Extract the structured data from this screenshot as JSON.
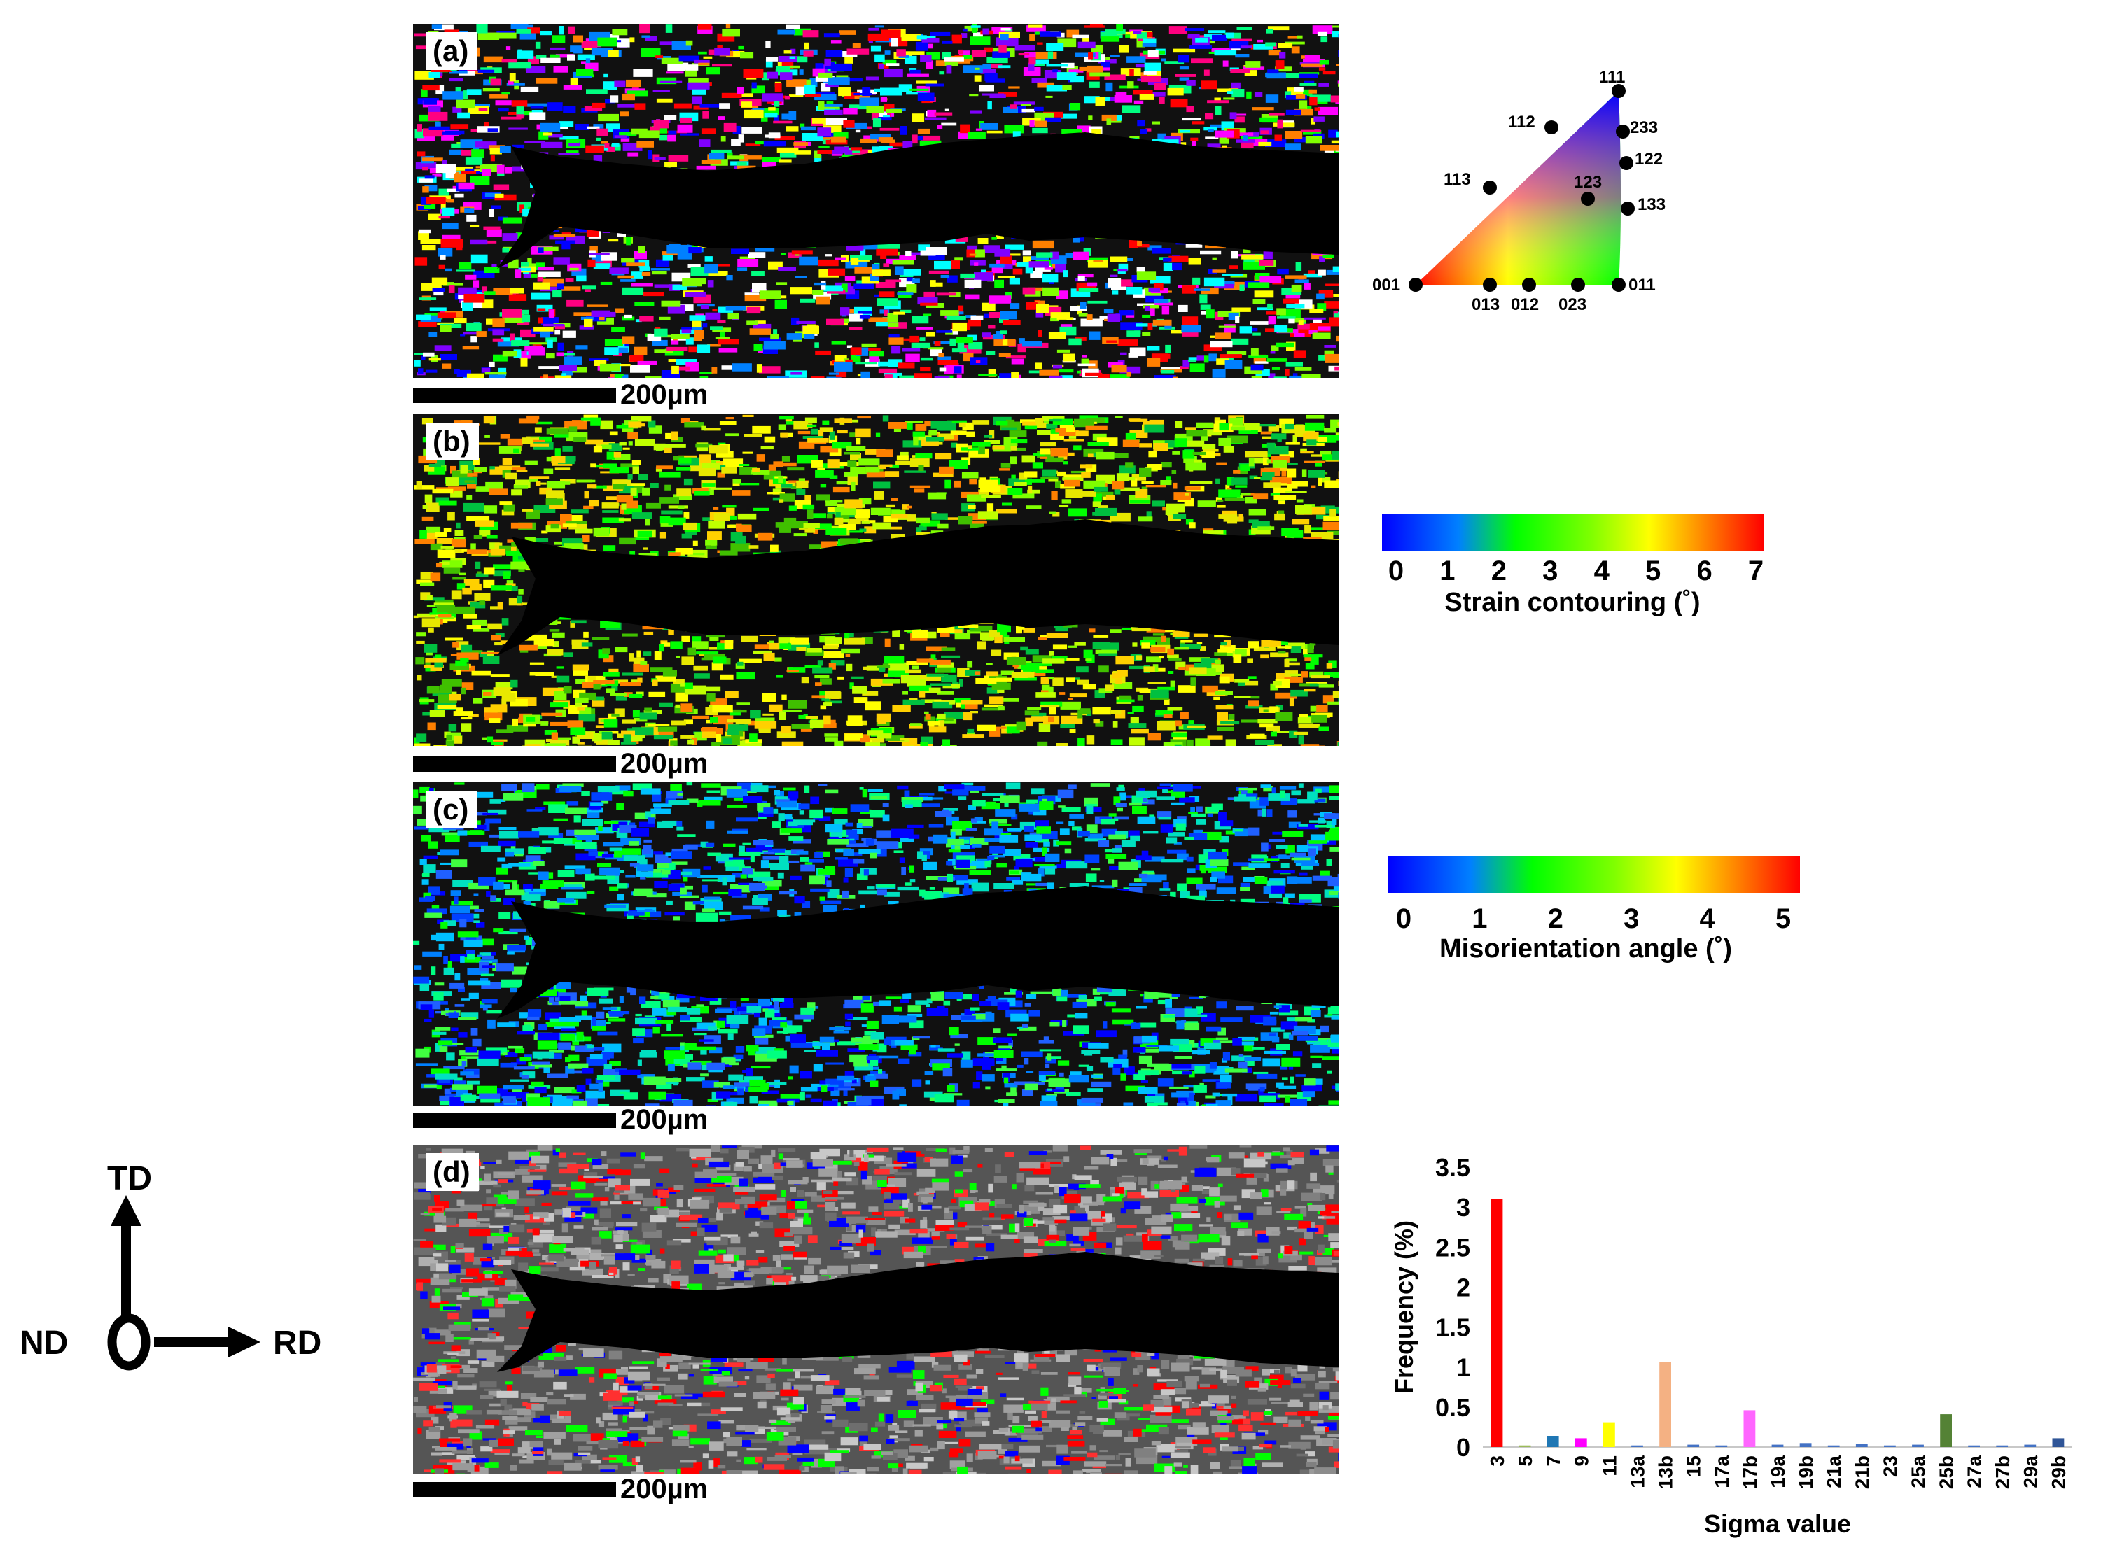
{
  "panels": [
    {
      "label": "(a)",
      "scale": "200µm",
      "style": "ipf"
    },
    {
      "label": "(b)",
      "scale": "200µm",
      "style": "strain"
    },
    {
      "label": "(c)",
      "scale": "200µm",
      "style": "misor"
    },
    {
      "label": "(d)",
      "scale": "200µm",
      "style": "csl"
    }
  ],
  "ipf_key": {
    "poles": [
      "111",
      "112",
      "233",
      "122",
      "113",
      "123",
      "133",
      "001",
      "013",
      "012",
      "023",
      "011"
    ]
  },
  "strain_bar": {
    "ticks": [
      "0",
      "1",
      "2",
      "3",
      "4",
      "5",
      "6",
      "7"
    ],
    "title": "Strain contouring (˚)"
  },
  "misor_bar": {
    "ticks": [
      "0",
      "1",
      "2",
      "3",
      "4",
      "5"
    ],
    "title": "Misorientation angle (˚)"
  },
  "axes": {
    "td": "TD",
    "nd": "ND",
    "rd": "RD"
  },
  "chart_data": {
    "type": "bar",
    "categories": [
      "3",
      "5",
      "7",
      "9",
      "11",
      "13a",
      "13b",
      "15",
      "17a",
      "17b",
      "19a",
      "19b",
      "21a",
      "21b",
      "23",
      "25a",
      "25b",
      "27a",
      "27b",
      "29a",
      "29b"
    ],
    "values": [
      3.1,
      0.02,
      0.14,
      0.11,
      0.31,
      0.02,
      1.06,
      0.03,
      0.02,
      0.46,
      0.03,
      0.05,
      0.02,
      0.04,
      0.02,
      0.03,
      0.41,
      0.02,
      0.02,
      0.03,
      0.11
    ],
    "colors": [
      "#ff0000",
      "#9bbb59",
      "#1f77b4",
      "#ff00ff",
      "#ffff00",
      "#4472c4",
      "#f4b183",
      "#4472c4",
      "#4472c4",
      "#ff66ff",
      "#4472c4",
      "#4472c4",
      "#4472c4",
      "#4472c4",
      "#4472c4",
      "#4472c4",
      "#548235",
      "#4472c4",
      "#4472c4",
      "#4472c4",
      "#2f5597"
    ],
    "yticks": [
      "0",
      "0.5",
      "1",
      "1.5",
      "2",
      "2.5",
      "3",
      "3.5"
    ],
    "ylim": [
      0,
      3.5
    ],
    "ylabel": "Frequency (%)",
    "xlabel": "Sigma value"
  }
}
